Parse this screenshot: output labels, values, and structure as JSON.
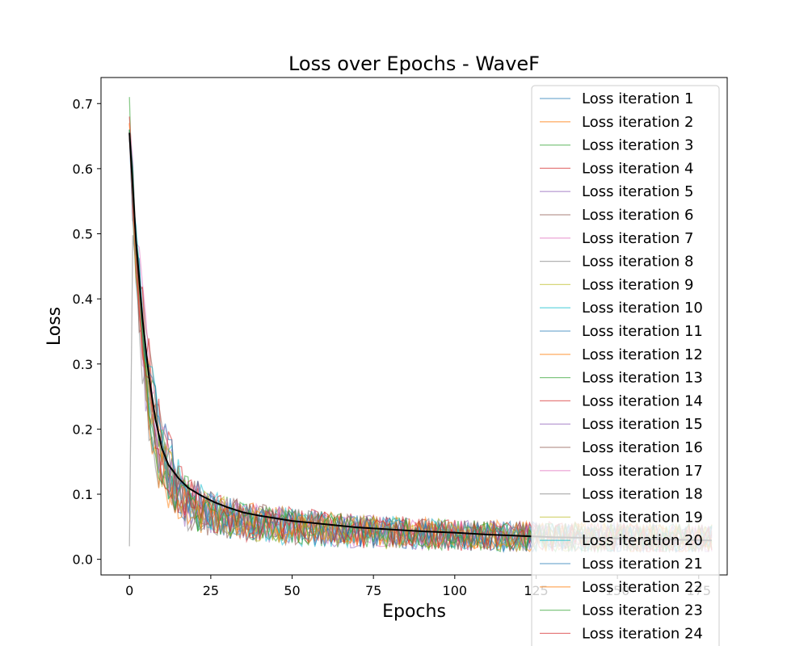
{
  "chart_data": {
    "type": "line",
    "title": "Loss over Epochs - WaveF",
    "xlabel": "Epochs",
    "ylabel": "Loss",
    "xlim": [
      -8.75,
      183.75
    ],
    "ylim": [
      -0.024,
      0.74
    ],
    "xticks": [
      "0",
      "25",
      "50",
      "75",
      "100",
      "125",
      "150",
      "175"
    ],
    "yticks": [
      "0.0",
      "0.1",
      "0.2",
      "0.3",
      "0.4",
      "0.5",
      "0.6",
      "0.7"
    ],
    "grid": false,
    "legend_position": "upper right",
    "series_colors": [
      "#1f77b4",
      "#ff7f0e",
      "#2ca02c",
      "#d62728",
      "#9467bd",
      "#8c564b",
      "#e377c2",
      "#7f7f7f",
      "#bcbd22",
      "#17becf"
    ],
    "series": [
      {
        "name": "Loss iteration 1",
        "start": 0.66,
        "end": 0.03
      },
      {
        "name": "Loss iteration 2",
        "start": 0.67,
        "end": 0.032
      },
      {
        "name": "Loss iteration 3",
        "start": 0.71,
        "end": 0.031
      },
      {
        "name": "Loss iteration 4",
        "start": 0.68,
        "end": 0.033
      },
      {
        "name": "Loss iteration 5",
        "start": 0.65,
        "end": 0.03
      },
      {
        "name": "Loss iteration 6",
        "start": 0.66,
        "end": 0.032
      },
      {
        "name": "Loss iteration 7",
        "start": 0.67,
        "end": 0.031
      },
      {
        "name": "Loss iteration 8",
        "start": 0.02,
        "end": 0.03
      },
      {
        "name": "Loss iteration 9",
        "start": 0.66,
        "end": 0.032
      },
      {
        "name": "Loss iteration 10",
        "start": 0.65,
        "end": 0.029
      },
      {
        "name": "Loss iteration 11",
        "start": 0.66,
        "end": 0.031
      },
      {
        "name": "Loss iteration 12",
        "start": 0.67,
        "end": 0.032
      },
      {
        "name": "Loss iteration 13",
        "start": 0.65,
        "end": 0.03
      },
      {
        "name": "Loss iteration 14",
        "start": 0.66,
        "end": 0.031
      },
      {
        "name": "Loss iteration 15",
        "start": 0.65,
        "end": 0.032
      },
      {
        "name": "Loss iteration 16",
        "start": 0.66,
        "end": 0.03
      },
      {
        "name": "Loss iteration 17",
        "start": 0.65,
        "end": 0.031
      },
      {
        "name": "Loss iteration 18",
        "start": 0.66,
        "end": 0.032
      },
      {
        "name": "Loss iteration 19",
        "start": 0.66,
        "end": 0.03
      },
      {
        "name": "Loss iteration 20",
        "start": 0.65,
        "end": 0.031
      },
      {
        "name": "Loss iteration 21",
        "start": 0.66,
        "end": 0.03
      },
      {
        "name": "Loss iteration 22",
        "start": 0.65,
        "end": 0.031
      },
      {
        "name": "Loss iteration 23",
        "start": 0.66,
        "end": 0.032
      },
      {
        "name": "Loss iteration 24",
        "start": 0.65,
        "end": 0.03
      }
    ],
    "mean_line": {
      "color": "#000000",
      "points": [
        [
          0,
          0.655
        ],
        [
          2,
          0.49
        ],
        [
          4,
          0.37
        ],
        [
          6,
          0.28
        ],
        [
          8,
          0.215
        ],
        [
          10,
          0.17
        ],
        [
          12,
          0.145
        ],
        [
          15,
          0.125
        ],
        [
          18,
          0.11
        ],
        [
          22,
          0.098
        ],
        [
          26,
          0.088
        ],
        [
          30,
          0.08
        ],
        [
          35,
          0.072
        ],
        [
          40,
          0.067
        ],
        [
          50,
          0.059
        ],
        [
          60,
          0.054
        ],
        [
          70,
          0.049
        ],
        [
          80,
          0.046
        ],
        [
          90,
          0.043
        ],
        [
          100,
          0.041
        ],
        [
          110,
          0.038
        ],
        [
          120,
          0.036
        ],
        [
          130,
          0.034
        ],
        [
          140,
          0.033
        ],
        [
          150,
          0.032
        ],
        [
          160,
          0.031
        ],
        [
          170,
          0.03
        ],
        [
          179,
          0.029
        ]
      ]
    }
  }
}
